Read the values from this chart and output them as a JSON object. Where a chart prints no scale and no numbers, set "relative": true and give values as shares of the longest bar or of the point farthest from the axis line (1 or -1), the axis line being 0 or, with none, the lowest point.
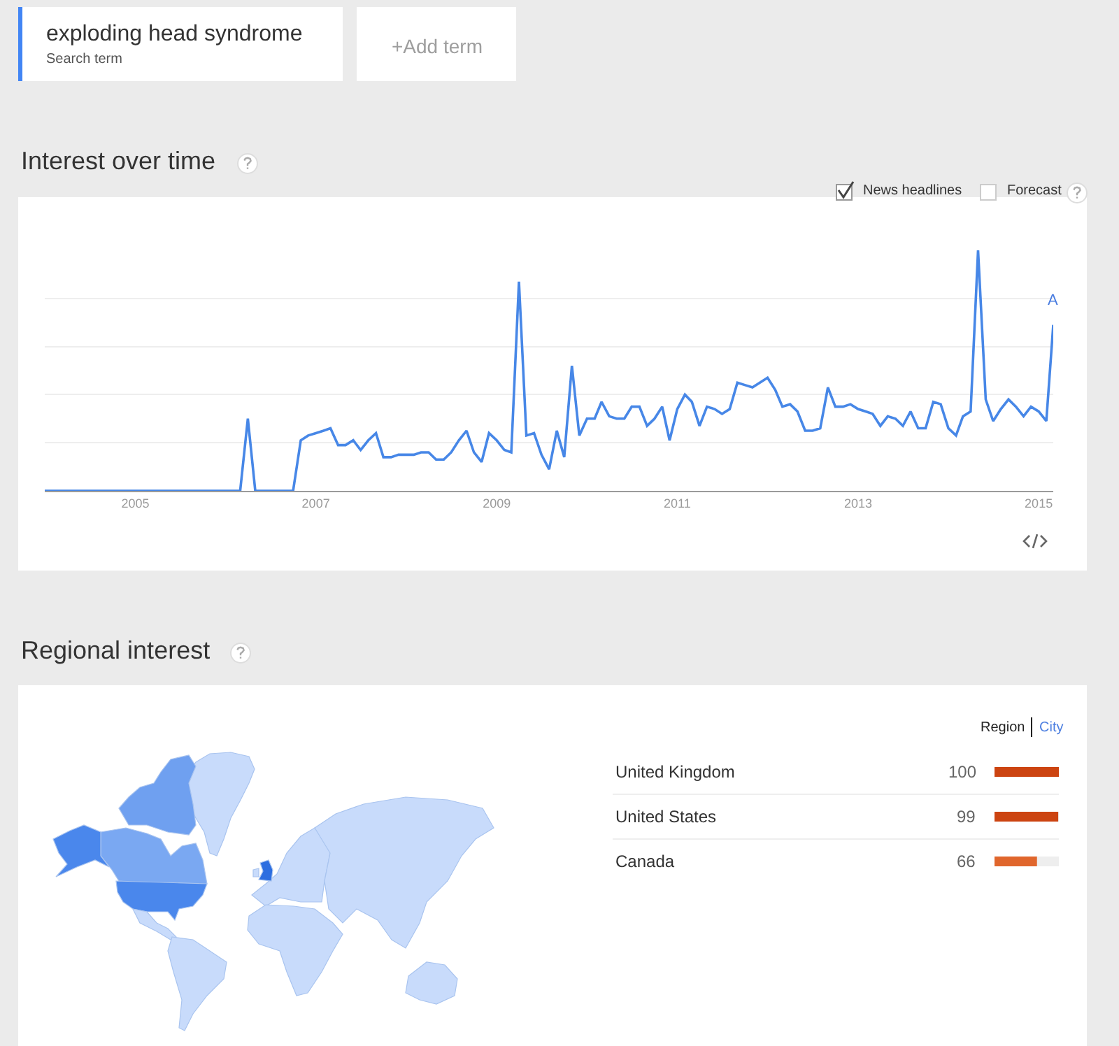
{
  "chart_data": [
    {
      "type": "line",
      "title": "Interest over time",
      "annotations": [
        "exploding head syndrome",
        "Search term",
        "+Add term",
        "News headlines",
        "Forecast",
        {
          "text": "A",
          "x": "2015-03",
          "y": 0.69
        }
      ],
      "x": [
        "2004-01",
        "2006-03",
        "2006-04",
        "2006-05",
        "2006-10",
        "2006-11",
        "2006-12",
        "2007-01",
        "2007-02",
        "2007-03",
        "2007-04",
        "2007-05",
        "2007-06",
        "2007-07",
        "2007-08",
        "2007-09",
        "2007-10",
        "2007-11",
        "2007-12",
        "2008-01",
        "2008-02",
        "2008-03",
        "2008-04",
        "2008-05",
        "2008-06",
        "2008-07",
        "2008-08",
        "2008-09",
        "2008-10",
        "2008-11",
        "2008-12",
        "2009-01",
        "2009-02",
        "2009-03",
        "2009-04",
        "2009-05",
        "2009-06",
        "2009-07",
        "2009-08",
        "2009-09",
        "2009-10",
        "2009-11",
        "2009-12",
        "2010-01",
        "2010-02",
        "2010-03",
        "2010-04",
        "2010-05",
        "2010-06",
        "2010-07",
        "2010-08",
        "2010-09",
        "2010-10",
        "2010-11",
        "2010-12",
        "2011-01",
        "2011-02",
        "2011-03",
        "2011-04",
        "2011-05",
        "2011-06",
        "2011-07",
        "2011-08",
        "2011-09",
        "2011-10",
        "2011-11",
        "2011-12",
        "2012-01",
        "2012-02",
        "2012-03",
        "2012-04",
        "2012-05",
        "2012-06",
        "2012-07",
        "2012-08",
        "2012-09",
        "2012-10",
        "2012-11",
        "2012-12",
        "2013-01",
        "2013-02",
        "2013-03",
        "2013-04",
        "2013-05",
        "2013-06",
        "2013-07",
        "2013-08",
        "2013-09",
        "2013-10",
        "2013-11",
        "2013-12",
        "2014-01",
        "2014-02",
        "2014-03",
        "2014-04",
        "2014-05",
        "2014-06",
        "2014-07",
        "2014-08",
        "2014-09",
        "2014-10",
        "2014-11",
        "2014-12",
        "2015-01",
        "2015-02",
        "2015-03"
      ],
      "series": [
        {
          "color": "#4787e7",
          "values": [
            0,
            0,
            0.3,
            0,
            0,
            0.21,
            0.23,
            0.24,
            0.25,
            0.26,
            0.19,
            0.19,
            0.21,
            0.17,
            0.21,
            0.24,
            0.14,
            0.14,
            0.15,
            0.15,
            0.15,
            0.16,
            0.16,
            0.13,
            0.13,
            0.16,
            0.21,
            0.25,
            0.16,
            0.12,
            0.24,
            0.21,
            0.17,
            0.16,
            0.87,
            0.23,
            0.24,
            0.15,
            0.09,
            0.25,
            0.14,
            0.52,
            0.23,
            0.3,
            0.3,
            0.37,
            0.31,
            0.3,
            0.3,
            0.35,
            0.35,
            0.27,
            0.3,
            0.35,
            0.21,
            0.34,
            0.4,
            0.37,
            0.27,
            0.35,
            0.34,
            0.32,
            0.34,
            0.45,
            0.44,
            0.43,
            0.45,
            0.47,
            0.42,
            0.35,
            0.36,
            0.33,
            0.25,
            0.25,
            0.26,
            0.43,
            0.35,
            0.35,
            0.36,
            0.34,
            0.33,
            0.32,
            0.27,
            0.31,
            0.3,
            0.27,
            0.33,
            0.26,
            0.26,
            0.37,
            0.36,
            0.26,
            0.23,
            0.31,
            0.33,
            1,
            0.38,
            0.29,
            0.34,
            0.38,
            0.35,
            0.31,
            0.35,
            0.33,
            0.29,
            0.69
          ]
        }
      ],
      "relative": true,
      "xlim": [
        "2004-01",
        "2015-03"
      ],
      "xticks": [
        "2005",
        "2007",
        "2009",
        "2011",
        "2013",
        "2015"
      ],
      "grid": "y",
      "tick_labels": "x",
      "line_style": "solid"
    },
    {
      "type": "bar",
      "orientation": "horizontal",
      "annotations": [
        "Regional interest",
        "Region",
        "City"
      ],
      "categories": [
        "United Kingdom",
        "United States",
        "Canada"
      ],
      "values": [
        100,
        99,
        66
      ],
      "colors": [
        "#cc4411",
        "#cc4411",
        "#e0662c"
      ],
      "data_labels": true,
      "tick_labels": "y"
    }
  ]
}
